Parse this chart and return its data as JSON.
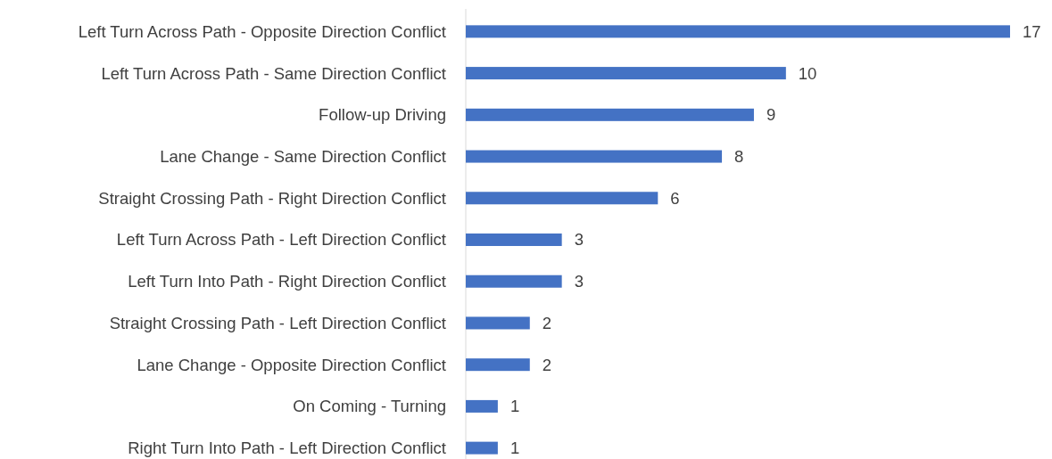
{
  "chart_data": {
    "type": "bar",
    "orientation": "horizontal",
    "categories": [
      "Left Turn Across Path - Opposite Direction Conflict",
      "Left Turn Across Path - Same Direction Conflict",
      "Follow-up Driving",
      "Lane Change - Same Direction Conflict",
      "Straight Crossing Path - Right Direction Conflict",
      "Left Turn Across Path - Left Direction Conflict",
      "Left Turn Into Path - Right Direction Conflict",
      "Straight Crossing Path - Left Direction Conflict",
      "Lane Change - Opposite Direction Conflict",
      "On Coming - Turning",
      "Right Turn Into Path - Left Direction Conflict"
    ],
    "values": [
      17,
      10,
      9,
      8,
      6,
      3,
      3,
      2,
      2,
      1,
      1
    ],
    "color": "#4472c4",
    "data_labels": true
  }
}
